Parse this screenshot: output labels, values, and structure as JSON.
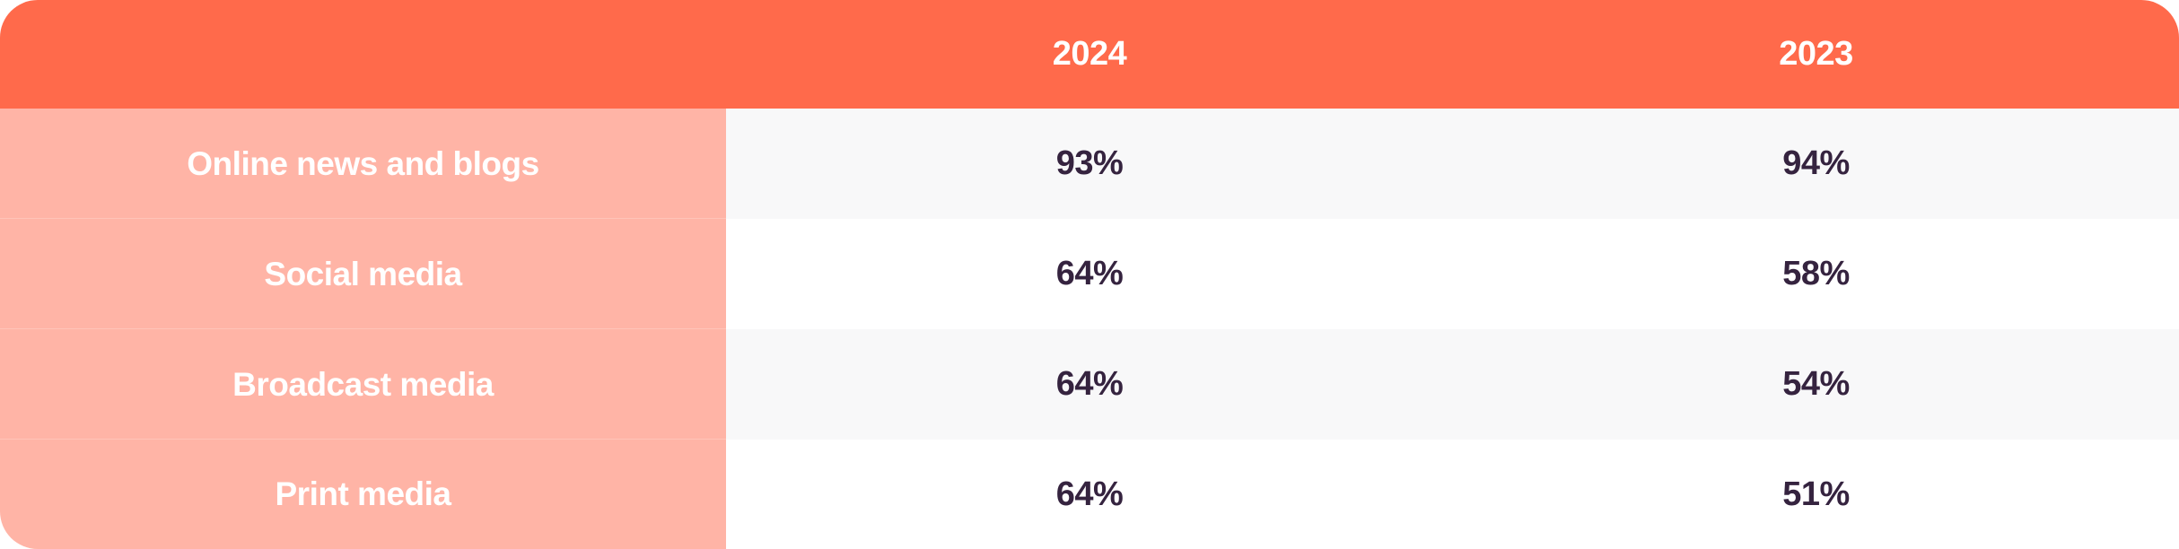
{
  "colors": {
    "header_bg": "#ff6a4b",
    "label_bg": "#ffb4a6",
    "shaded_row_bg": "#f8f8f9",
    "value_text": "#35233f",
    "header_text": "#ffffff"
  },
  "header": {
    "label_column": "",
    "col_2024": "2024",
    "col_2023": "2023"
  },
  "chart_data": {
    "type": "table",
    "columns": [
      "",
      "2024",
      "2023"
    ],
    "rows": [
      {
        "label": "Online news and blogs",
        "v2024": "93%",
        "v2023": "94%"
      },
      {
        "label": "Social media",
        "v2024": "64%",
        "v2023": "58%"
      },
      {
        "label": "Broadcast media",
        "v2024": "64%",
        "v2023": "54%"
      },
      {
        "label": "Print media",
        "v2024": "64%",
        "v2023": "51%"
      }
    ]
  }
}
